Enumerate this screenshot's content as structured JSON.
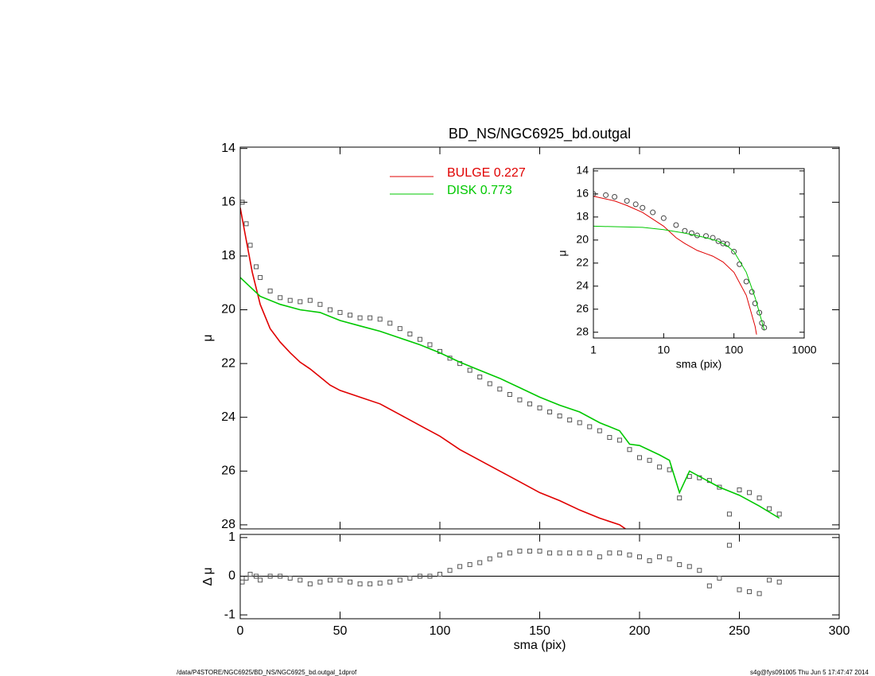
{
  "chart_data": [
    {
      "type": "line",
      "title": "BD_NS/NGC6925_bd.outgal",
      "ylabel": "μ",
      "legend": "upper-center",
      "grid": false,
      "xlim": [
        0,
        300
      ],
      "xticks": [
        0,
        50,
        100,
        150,
        200,
        250,
        300
      ],
      "xtick_labels": false,
      "ylim": [
        28.15,
        13.95
      ],
      "yticks": [
        14,
        16,
        18,
        20,
        22,
        24,
        26,
        28
      ],
      "series": [
        {
          "marker": "square",
          "color": "#555555",
          "x": [
            1,
            3,
            5,
            8,
            10,
            15,
            20,
            25,
            30,
            35,
            40,
            45,
            50,
            55,
            60,
            65,
            70,
            75,
            80,
            85,
            90,
            95,
            100,
            105,
            110,
            115,
            120,
            125,
            130,
            135,
            140,
            145,
            150,
            155,
            160,
            165,
            170,
            175,
            180,
            185,
            190,
            195,
            200,
            205,
            210,
            215,
            220,
            225,
            230,
            235,
            240,
            245,
            250,
            255,
            260,
            265,
            270
          ],
          "values": [
            16.0,
            16.8,
            17.6,
            18.4,
            18.8,
            19.3,
            19.55,
            19.65,
            19.7,
            19.65,
            19.8,
            20.0,
            20.1,
            20.2,
            20.3,
            20.3,
            20.35,
            20.5,
            20.7,
            20.9,
            21.1,
            21.3,
            21.55,
            21.8,
            22.0,
            22.25,
            22.5,
            22.75,
            22.95,
            23.15,
            23.35,
            23.5,
            23.65,
            23.8,
            23.95,
            24.1,
            24.2,
            24.35,
            24.5,
            24.75,
            24.85,
            25.2,
            25.5,
            25.6,
            25.85,
            25.95,
            27.0,
            26.2,
            26.25,
            26.35,
            26.6,
            27.6,
            26.7,
            26.8,
            27.0,
            27.4,
            27.6
          ]
        },
        {
          "name": "BULGE  0.227",
          "color": "#e00000",
          "x": [
            0,
            3,
            6,
            10,
            15,
            20,
            25,
            30,
            35,
            40,
            45,
            50,
            60,
            70,
            80,
            90,
            100,
            110,
            120,
            130,
            140,
            150,
            160,
            170,
            180,
            190,
            193
          ],
          "values": [
            16.2,
            17.4,
            18.6,
            19.8,
            20.7,
            21.2,
            21.6,
            21.95,
            22.2,
            22.5,
            22.8,
            23.0,
            23.25,
            23.5,
            23.9,
            24.3,
            24.7,
            25.2,
            25.6,
            26.0,
            26.4,
            26.8,
            27.1,
            27.45,
            27.75,
            28.0,
            28.15
          ]
        },
        {
          "name": "DISK  0.773",
          "color": "#00c800",
          "x": [
            0,
            10,
            20,
            30,
            40,
            50,
            60,
            70,
            80,
            90,
            100,
            110,
            120,
            130,
            140,
            150,
            160,
            170,
            180,
            190,
            195,
            200,
            210,
            215,
            220,
            225,
            230,
            240,
            250,
            260,
            270
          ],
          "values": [
            18.8,
            19.5,
            19.8,
            20.0,
            20.1,
            20.4,
            20.6,
            20.8,
            21.05,
            21.3,
            21.6,
            21.95,
            22.25,
            22.55,
            22.9,
            23.25,
            23.55,
            23.8,
            24.2,
            24.5,
            25.0,
            25.05,
            25.4,
            25.6,
            26.8,
            26.0,
            26.2,
            26.6,
            26.9,
            27.3,
            27.75
          ]
        }
      ]
    },
    {
      "type": "scatter",
      "xlabel": "sma (pix)",
      "ylabel": "Δ μ",
      "reference_line": 0,
      "xlim": [
        0,
        300
      ],
      "xticks": [
        0,
        50,
        100,
        150,
        200,
        250,
        300
      ],
      "ylim": [
        -1.1,
        1.08
      ],
      "yticks": [
        -1,
        0,
        1
      ],
      "series": [
        {
          "marker": "square",
          "color": "#555555",
          "x": [
            1,
            3,
            5,
            8,
            10,
            15,
            20,
            25,
            30,
            35,
            40,
            45,
            50,
            55,
            60,
            65,
            70,
            75,
            80,
            85,
            90,
            95,
            100,
            105,
            110,
            115,
            120,
            125,
            130,
            135,
            140,
            145,
            150,
            155,
            160,
            165,
            170,
            175,
            180,
            185,
            190,
            195,
            200,
            205,
            210,
            215,
            220,
            225,
            230,
            235,
            240,
            245,
            250,
            255,
            260,
            265,
            270
          ],
          "values": [
            -0.15,
            -0.05,
            0.05,
            0.0,
            -0.1,
            0.0,
            0.0,
            -0.05,
            -0.1,
            -0.2,
            -0.15,
            -0.1,
            -0.1,
            -0.15,
            -0.2,
            -0.2,
            -0.18,
            -0.15,
            -0.1,
            -0.05,
            0.0,
            0.0,
            0.05,
            0.15,
            0.25,
            0.3,
            0.35,
            0.45,
            0.55,
            0.6,
            0.65,
            0.65,
            0.65,
            0.6,
            0.6,
            0.6,
            0.6,
            0.6,
            0.5,
            0.6,
            0.6,
            0.55,
            0.5,
            0.4,
            0.5,
            0.45,
            0.3,
            0.25,
            0.15,
            -0.25,
            -0.05,
            0.8,
            -0.35,
            -0.4,
            -0.45,
            -0.1,
            -0.15
          ]
        }
      ]
    },
    {
      "type": "line",
      "xlabel": "sma (pix)",
      "ylabel": "μ",
      "xscale": "log",
      "xlim": [
        1,
        1000
      ],
      "xticks": [
        1,
        10,
        100,
        1000
      ],
      "ylim": [
        28.5,
        13.8
      ],
      "yticks": [
        14,
        16,
        18,
        20,
        22,
        24,
        26,
        28
      ],
      "series": [
        {
          "marker": "circle",
          "color": "#444444",
          "x": [
            1,
            1.5,
            2,
            3,
            4,
            5,
            7,
            10,
            15,
            20,
            25,
            30,
            40,
            50,
            60,
            70,
            80,
            100,
            120,
            150,
            180,
            200,
            230,
            250,
            270
          ],
          "values": [
            16.0,
            16.1,
            16.25,
            16.6,
            16.9,
            17.2,
            17.6,
            18.1,
            18.7,
            19.2,
            19.4,
            19.6,
            19.65,
            19.8,
            20.1,
            20.3,
            20.35,
            21.0,
            22.1,
            23.6,
            24.5,
            25.5,
            26.3,
            27.2,
            27.6
          ]
        },
        {
          "color": "#e00000",
          "x": [
            1,
            2,
            3,
            5,
            10,
            15,
            20,
            30,
            50,
            70,
            100,
            150,
            200,
            210
          ],
          "values": [
            16.2,
            16.6,
            17.0,
            17.6,
            18.8,
            19.8,
            20.3,
            20.9,
            21.4,
            21.9,
            22.8,
            24.8,
            27.5,
            28.2
          ]
        },
        {
          "color": "#00c800",
          "x": [
            1,
            5,
            10,
            20,
            40,
            60,
            80,
            100,
            150,
            200,
            270
          ],
          "values": [
            18.8,
            18.9,
            19.1,
            19.4,
            19.8,
            20.1,
            20.5,
            21.0,
            22.8,
            25.0,
            27.8
          ]
        }
      ]
    }
  ],
  "footer_left": "/data/P4STORE/NGC6925/BD_NS/NGC6925_bd.outgal_1dprof",
  "footer_right": "s4g@fys091005  Thu Jun  5 17:47:47 2014"
}
